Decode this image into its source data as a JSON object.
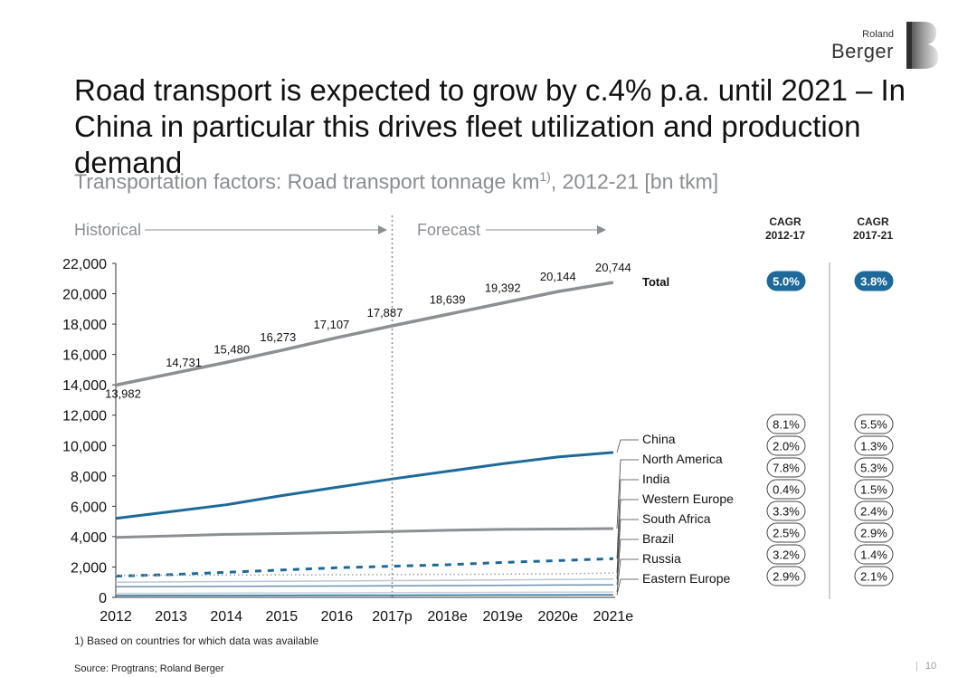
{
  "header": {
    "logo_small": "Roland",
    "logo_big": "Berger",
    "title": "Road transport is expected to grow by c.4% p.a. until 2021 – In China in particular this drives fleet utilization and production demand",
    "subtitle": "Transportation factors: Road transport tonnage km",
    "subtitle_sup": "1)",
    "subtitle_suffix": ", 2012-21 [bn tkm]"
  },
  "phases": {
    "historical": "Historical",
    "forecast": "Forecast"
  },
  "cagr": {
    "col1_label": [
      "CAGR",
      "2012-17"
    ],
    "col2_label": [
      "CAGR",
      "2017-21"
    ],
    "total": [
      "5.0%",
      "3.8%"
    ],
    "rows": [
      [
        "8.1%",
        "5.5%"
      ],
      [
        "2.0%",
        "1.3%"
      ],
      [
        "7.8%",
        "5.3%"
      ],
      [
        "0.4%",
        "1.5%"
      ],
      [
        "3.3%",
        "2.4%"
      ],
      [
        "2.5%",
        "2.9%"
      ],
      [
        "3.2%",
        "1.4%"
      ],
      [
        "2.9%",
        "2.1%"
      ]
    ]
  },
  "chart_data": {
    "type": "line",
    "title": "Transportation factors: Road transport tonnage km, 2012-21 [bn tkm]",
    "categories": [
      "2012",
      "2013",
      "2014",
      "2015",
      "2016",
      "2017p",
      "2018e",
      "2019e",
      "2020e",
      "2021e"
    ],
    "ylim": [
      0,
      22000
    ],
    "yticks": [
      0,
      2000,
      4000,
      6000,
      8000,
      10000,
      12000,
      14000,
      16000,
      18000,
      20000,
      22000
    ],
    "ytick_labels": [
      "0",
      "2,000",
      "4,000",
      "6,000",
      "8,000",
      "10,000",
      "12,000",
      "14,000",
      "16,000",
      "18,000",
      "20,000",
      "22,000"
    ],
    "forecast_start": "2017p",
    "total": {
      "name": "Total",
      "values": [
        13982,
        14731,
        15480,
        16273,
        17107,
        17887,
        18639,
        19392,
        20144,
        20744
      ],
      "labels": [
        "13,982",
        "14,731",
        "15,480",
        "16,273",
        "17,107",
        "17,887",
        "18,639",
        "19,392",
        "20,144",
        "20,744"
      ],
      "color": "#8c8f93"
    },
    "series": [
      {
        "name": "China",
        "values": [
          5200,
          5650,
          6100,
          6700,
          7250,
          7800,
          8300,
          8800,
          9250,
          9550
        ],
        "color": "#1d6a9a",
        "dash": "solid"
      },
      {
        "name": "North America",
        "values": [
          3950,
          4050,
          4150,
          4200,
          4260,
          4340,
          4420,
          4480,
          4500,
          4530
        ],
        "color": "#8c8f93",
        "dash": "solid"
      },
      {
        "name": "India",
        "values": [
          1400,
          1500,
          1650,
          1800,
          1950,
          2050,
          2150,
          2300,
          2420,
          2550
        ],
        "color": "#1d6a9a",
        "dash": "dash"
      },
      {
        "name": "Western Europe",
        "values": [
          1450,
          1460,
          1470,
          1480,
          1490,
          1500,
          1510,
          1530,
          1550,
          1600
        ],
        "color": "#9aa0a6",
        "dash": "dot"
      },
      {
        "name": "South Africa",
        "values": [
          1000,
          1020,
          1040,
          1060,
          1080,
          1100,
          1120,
          1150,
          1180,
          1200
        ],
        "color": "#b7c7d6",
        "dash": "solid"
      },
      {
        "name": "Brazil",
        "values": [
          700,
          710,
          720,
          735,
          745,
          760,
          775,
          790,
          810,
          830
        ],
        "color": "#6f8fb0",
        "dash": "solid"
      },
      {
        "name": "Russia",
        "values": [
          260,
          270,
          280,
          290,
          300,
          310,
          320,
          330,
          340,
          350
        ],
        "color": "#c7ced6",
        "dash": "solid"
      },
      {
        "name": "Eastern Europe",
        "values": [
          120,
          125,
          130,
          135,
          140,
          145,
          150,
          155,
          160,
          165
        ],
        "color": "#1d6a9a",
        "dash": "solid"
      }
    ]
  },
  "footnote": "1) Based on countries for which data was available",
  "source": "Source: Progtrans; Roland Berger",
  "page_number": "10"
}
